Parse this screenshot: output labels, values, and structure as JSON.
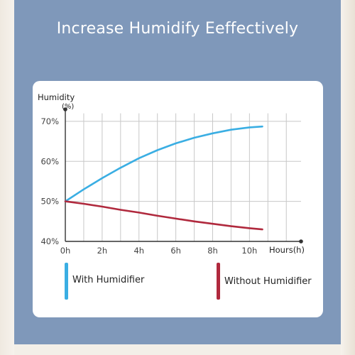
{
  "header": {
    "title": "Increase Humidify Eeffectively"
  },
  "colors": {
    "panel": "#7f98ba",
    "grid": "#c8c8c8",
    "axis": "#333333"
  },
  "chart_data": {
    "type": "line",
    "ylabel_line1": "Humidity",
    "ylabel_line2": "(%)",
    "xlabel": "Hours(h)",
    "x_ticks": [
      "0h",
      "2h",
      "4h",
      "6h",
      "8h",
      "10h"
    ],
    "y_ticks": [
      "40%",
      "50%",
      "60%",
      "70%"
    ],
    "xlim": [
      0,
      12.8
    ],
    "ylim": [
      40,
      73
    ],
    "grid": true,
    "legend_position": "bottom",
    "series": [
      {
        "name": "With Humidifier",
        "color": "#3aaee3",
        "x": [
          0,
          1,
          2,
          3,
          4,
          5,
          6,
          7,
          8,
          9,
          10,
          10.7
        ],
        "y": [
          50,
          53.0,
          55.8,
          58.4,
          60.8,
          62.8,
          64.5,
          65.9,
          67.0,
          67.9,
          68.5,
          68.7
        ]
      },
      {
        "name": "Without Humidifier",
        "color": "#b0293d",
        "x": [
          0,
          1,
          2,
          3,
          4,
          5,
          6,
          7,
          8,
          9,
          10,
          10.7
        ],
        "y": [
          50,
          49.4,
          48.7,
          47.9,
          47.2,
          46.4,
          45.7,
          45.0,
          44.4,
          43.8,
          43.3,
          43.0
        ]
      }
    ]
  }
}
